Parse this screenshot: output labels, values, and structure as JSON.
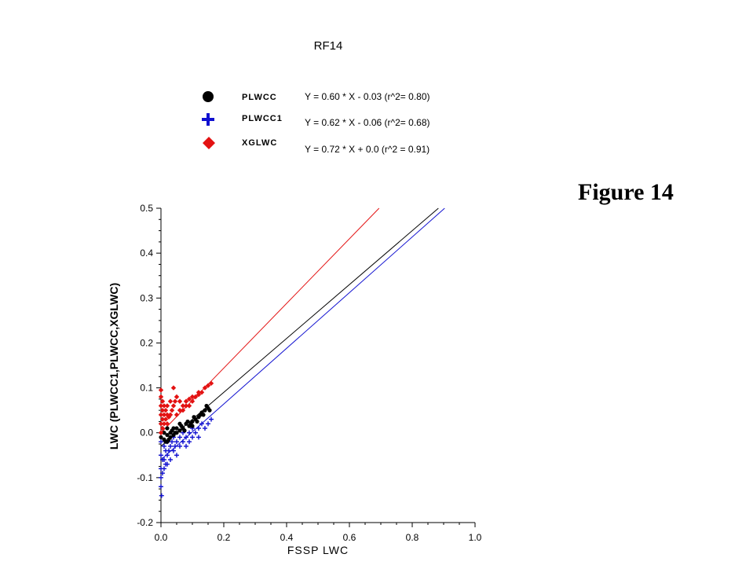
{
  "figure_label": "Figure 14",
  "colors": {
    "PLWCC": "#000000",
    "PLWCC1": "#1010d0",
    "XGLWC": "#e31212",
    "axis": "#000000",
    "background": "#ffffff"
  },
  "chart_data": {
    "type": "scatter",
    "title": "RF14",
    "xlabel": "FSSP LWC",
    "ylabel": "LWC (PLWCC1,PLWCC,XGLWC)",
    "xlim": [
      0.0,
      1.0
    ],
    "ylim": [
      -0.2,
      0.5
    ],
    "x_ticks": [
      "0.0",
      "0.2",
      "0.4",
      "0.6",
      "0.8",
      "1.0"
    ],
    "y_ticks": [
      "-0.2",
      "-0.1",
      "0.0",
      "0.1",
      "0.2",
      "0.3",
      "0.4",
      "0.5"
    ],
    "grid": false,
    "legend_position": "top",
    "series": [
      {
        "name": "PLWCC",
        "marker": "circle",
        "fit_label": "Y = 0.60 * X - 0.03 (r^2= 0.80)",
        "fit": {
          "slope": 0.6,
          "intercept": -0.03,
          "r2": 0.8
        },
        "points": [
          [
            0.0,
            -0.01
          ],
          [
            0.01,
            -0.015
          ],
          [
            0.02,
            -0.02
          ],
          [
            0.02,
            -0.005
          ],
          [
            0.03,
            -0.01
          ],
          [
            0.03,
            0.0
          ],
          [
            0.04,
            -0.005
          ],
          [
            0.05,
            0.0
          ],
          [
            0.05,
            0.01
          ],
          [
            0.06,
            0.005
          ],
          [
            0.07,
            0.01
          ],
          [
            0.08,
            0.02
          ],
          [
            0.09,
            0.015
          ],
          [
            0.1,
            0.025
          ],
          [
            0.11,
            0.03
          ],
          [
            0.12,
            0.035
          ],
          [
            0.13,
            0.045
          ],
          [
            0.14,
            0.05
          ],
          [
            0.15,
            0.055
          ],
          [
            0.015,
            -0.02
          ],
          [
            0.025,
            -0.015
          ],
          [
            0.035,
            0.005
          ],
          [
            0.045,
            0.0
          ],
          [
            0.065,
            0.015
          ],
          [
            0.075,
            0.005
          ],
          [
            0.085,
            0.025
          ],
          [
            0.095,
            0.02
          ],
          [
            0.105,
            0.035
          ],
          [
            0.115,
            0.025
          ],
          [
            0.125,
            0.04
          ],
          [
            0.135,
            0.04
          ],
          [
            0.01,
            0.0
          ],
          [
            0.02,
            0.01
          ],
          [
            0.04,
            0.01
          ],
          [
            0.06,
            0.02
          ],
          [
            0.1,
            0.015
          ],
          [
            0.145,
            0.06
          ],
          [
            0.155,
            0.05
          ]
        ]
      },
      {
        "name": "PLWCC1",
        "marker": "plus",
        "fit_label": "Y = 0.62 * X - 0.06 (r^2= 0.68)",
        "fit": {
          "slope": 0.62,
          "intercept": -0.06,
          "r2": 0.68
        },
        "points": [
          [
            0.0,
            -0.02
          ],
          [
            0.0,
            -0.05
          ],
          [
            0.0,
            -0.08
          ],
          [
            0.0,
            -0.1
          ],
          [
            0.0,
            -0.12
          ],
          [
            0.005,
            -0.06
          ],
          [
            0.005,
            -0.09
          ],
          [
            0.01,
            -0.03
          ],
          [
            0.01,
            -0.06
          ],
          [
            0.01,
            -0.08
          ],
          [
            0.015,
            -0.04
          ],
          [
            0.015,
            -0.07
          ],
          [
            0.02,
            -0.02
          ],
          [
            0.02,
            -0.05
          ],
          [
            0.02,
            -0.07
          ],
          [
            0.025,
            -0.04
          ],
          [
            0.03,
            -0.03
          ],
          [
            0.03,
            -0.06
          ],
          [
            0.035,
            -0.02
          ],
          [
            0.04,
            -0.01
          ],
          [
            0.04,
            -0.04
          ],
          [
            0.045,
            -0.03
          ],
          [
            0.05,
            -0.02
          ],
          [
            0.05,
            -0.05
          ],
          [
            0.06,
            -0.01
          ],
          [
            0.06,
            -0.03
          ],
          [
            0.07,
            -0.02
          ],
          [
            0.07,
            0.0
          ],
          [
            0.08,
            -0.01
          ],
          [
            0.08,
            -0.03
          ],
          [
            0.09,
            0.0
          ],
          [
            0.09,
            -0.02
          ],
          [
            0.1,
            -0.01
          ],
          [
            0.1,
            0.01
          ],
          [
            0.11,
            0.0
          ],
          [
            0.12,
            0.01
          ],
          [
            0.12,
            -0.01
          ],
          [
            0.13,
            0.02
          ],
          [
            0.14,
            0.01
          ],
          [
            0.15,
            0.02
          ],
          [
            0.16,
            0.03
          ],
          [
            0.002,
            -0.14
          ]
        ]
      },
      {
        "name": "XGLWC",
        "marker": "diamond",
        "fit_label": "Y = 0.72 * X +  0.0  (r^2 = 0.91)",
        "fit": {
          "slope": 0.72,
          "intercept": 0.0,
          "r2": 0.91
        },
        "points": [
          [
            0.0,
            0.0
          ],
          [
            0.0,
            0.02
          ],
          [
            0.0,
            0.04
          ],
          [
            0.0,
            0.06
          ],
          [
            0.0,
            0.08
          ],
          [
            0.0,
            0.095
          ],
          [
            0.005,
            0.01
          ],
          [
            0.005,
            0.03
          ],
          [
            0.005,
            0.05
          ],
          [
            0.005,
            0.07
          ],
          [
            0.01,
            0.02
          ],
          [
            0.01,
            0.04
          ],
          [
            0.01,
            0.06
          ],
          [
            0.015,
            0.03
          ],
          [
            0.015,
            0.05
          ],
          [
            0.02,
            0.02
          ],
          [
            0.02,
            0.04
          ],
          [
            0.02,
            0.06
          ],
          [
            0.025,
            0.035
          ],
          [
            0.03,
            0.04
          ],
          [
            0.03,
            0.07
          ],
          [
            0.035,
            0.05
          ],
          [
            0.04,
            0.06
          ],
          [
            0.04,
            0.1
          ],
          [
            0.045,
            0.07
          ],
          [
            0.05,
            0.04
          ],
          [
            0.05,
            0.08
          ],
          [
            0.06,
            0.05
          ],
          [
            0.06,
            0.07
          ],
          [
            0.07,
            0.05
          ],
          [
            0.07,
            0.06
          ],
          [
            0.08,
            0.06
          ],
          [
            0.08,
            0.07
          ],
          [
            0.09,
            0.06
          ],
          [
            0.09,
            0.075
          ],
          [
            0.1,
            0.07
          ],
          [
            0.1,
            0.08
          ],
          [
            0.11,
            0.08
          ],
          [
            0.12,
            0.085
          ],
          [
            0.12,
            0.09
          ],
          [
            0.13,
            0.09
          ],
          [
            0.14,
            0.1
          ],
          [
            0.15,
            0.105
          ],
          [
            0.16,
            0.11
          ]
        ]
      }
    ]
  }
}
